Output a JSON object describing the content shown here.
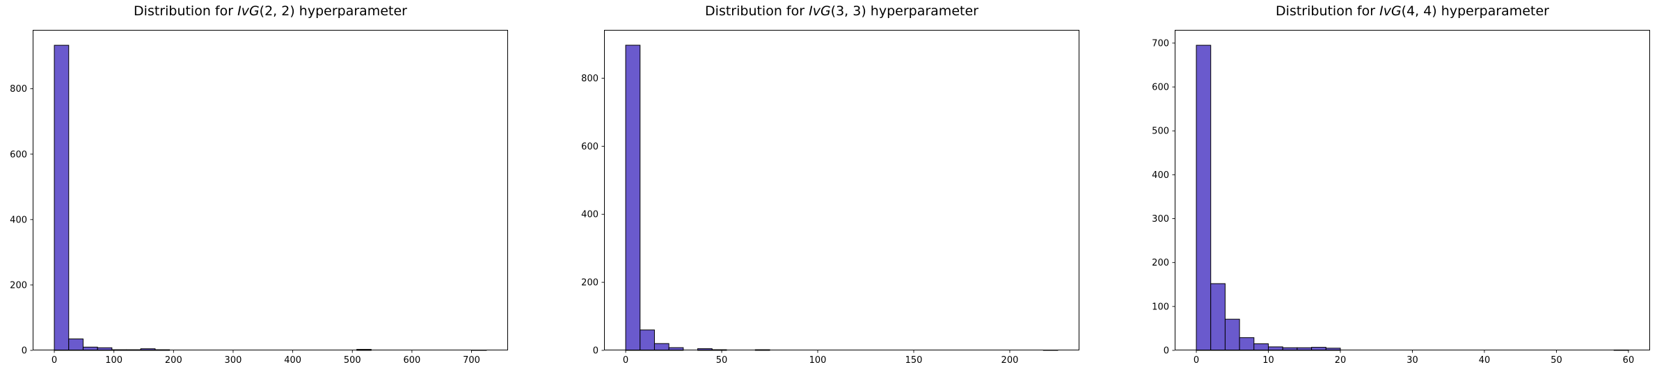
{
  "figure": {
    "background": "#ffffff",
    "bar_fill": "#6A5ACD",
    "bar_edge": "#000000",
    "axis_color": "#000000",
    "tick_label_color": "#000000"
  },
  "chart_data": [
    {
      "type": "bar",
      "subtype": "histogram",
      "title": {
        "prefix": "Distribution for ",
        "math": "IvG",
        "args": "(2, 2)",
        "suffix": " hyperparameter"
      },
      "xlabel": "",
      "ylabel": "",
      "grid": false,
      "bin_start": 0,
      "bin_width": 24.1667,
      "values": [
        933,
        35,
        10,
        8,
        2,
        2,
        5,
        2,
        0,
        0,
        0,
        0,
        0,
        0,
        0,
        0,
        0,
        0,
        0,
        0,
        0,
        3,
        0,
        0,
        0,
        0,
        0,
        0,
        0,
        1
      ],
      "xticks": [
        0,
        100,
        200,
        300,
        400,
        500,
        600,
        700
      ],
      "yticks": [
        0,
        200,
        400,
        600,
        800
      ],
      "xlim": [
        -36.25,
        761.25
      ],
      "ylim": [
        0,
        980
      ]
    },
    {
      "type": "bar",
      "subtype": "histogram",
      "title": {
        "prefix": "Distribution for ",
        "math": "IvG",
        "args": "(3, 3)",
        "suffix": " hyperparameter"
      },
      "xlabel": "",
      "ylabel": "",
      "grid": false,
      "bin_start": 0,
      "bin_width": 7.5,
      "values": [
        897,
        60,
        20,
        8,
        0,
        5,
        2,
        0,
        0,
        2,
        0,
        0,
        0,
        0,
        0,
        0,
        0,
        0,
        0,
        0,
        0,
        0,
        0,
        0,
        0,
        0,
        0,
        0,
        0,
        1
      ],
      "xticks": [
        0,
        50,
        100,
        150,
        200
      ],
      "yticks": [
        0,
        200,
        400,
        600,
        800
      ],
      "xlim": [
        -11.25,
        236.25
      ],
      "ylim": [
        0,
        942
      ]
    },
    {
      "type": "bar",
      "subtype": "histogram",
      "title": {
        "prefix": "Distribution for ",
        "math": "IvG",
        "args": "(4, 4)",
        "suffix": " hyperparameter"
      },
      "xlabel": "",
      "ylabel": "",
      "grid": false,
      "bin_start": 0,
      "bin_width": 2,
      "values": [
        695,
        152,
        71,
        29,
        15,
        8,
        6,
        6,
        7,
        5,
        0,
        0,
        0,
        0,
        0,
        0,
        0,
        0,
        0,
        0,
        0,
        0,
        0,
        0,
        0,
        0,
        0,
        0,
        0,
        1
      ],
      "xticks": [
        0,
        10,
        20,
        30,
        40,
        50,
        60
      ],
      "yticks": [
        0,
        100,
        200,
        300,
        400,
        500,
        600,
        700
      ],
      "xlim": [
        -3,
        63
      ],
      "ylim": [
        0,
        730
      ]
    }
  ]
}
